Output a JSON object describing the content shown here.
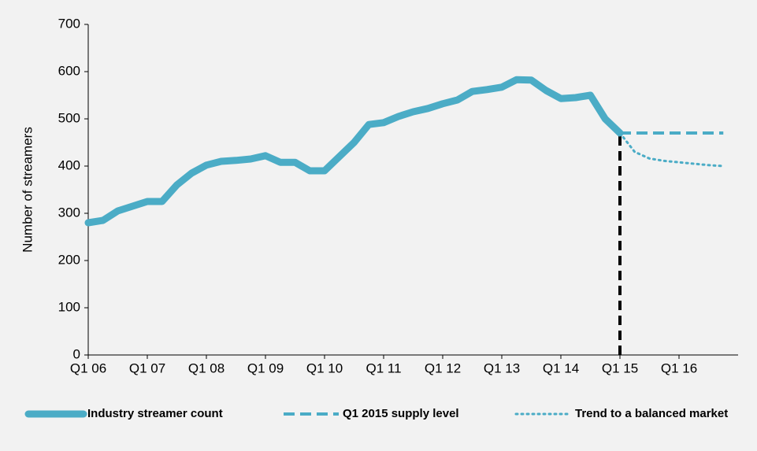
{
  "chart_data": {
    "type": "line",
    "y_label": "Number of streamers",
    "categories": [
      "Q1 06",
      null,
      null,
      null,
      "Q1 07",
      null,
      null,
      null,
      "Q1 08",
      null,
      null,
      null,
      "Q1 09",
      null,
      null,
      null,
      "Q1 10",
      null,
      null,
      null,
      "Q1 11",
      null,
      null,
      null,
      "Q1 12",
      null,
      null,
      null,
      "Q1 13",
      null,
      null,
      null,
      "Q1 14",
      null,
      null,
      null,
      "Q1 15",
      null,
      null,
      null,
      "Q1 16",
      null,
      null,
      null
    ],
    "series": [
      {
        "name": "Industry streamer count",
        "color": "#4bacc6",
        "style": "solid",
        "values": [
          280,
          285,
          305,
          315,
          325,
          325,
          360,
          385,
          402,
          410,
          412,
          415,
          422,
          408,
          408,
          390,
          390,
          420,
          450,
          488,
          492,
          505,
          515,
          522,
          532,
          540,
          558,
          562,
          567,
          583,
          582,
          560,
          543,
          545,
          550,
          500,
          470,
          null,
          null,
          null,
          null,
          null,
          null,
          null
        ]
      },
      {
        "name": "Q1 2015 supply level",
        "color": "#4bacc6",
        "style": "dashed",
        "values": [
          null,
          null,
          null,
          null,
          null,
          null,
          null,
          null,
          null,
          null,
          null,
          null,
          null,
          null,
          null,
          null,
          null,
          null,
          null,
          null,
          null,
          null,
          null,
          null,
          null,
          null,
          null,
          null,
          null,
          null,
          null,
          null,
          null,
          null,
          null,
          null,
          470,
          470,
          470,
          470,
          470,
          470,
          470,
          470
        ]
      },
      {
        "name": "Trend to a balanced market",
        "color": "#4bacc6",
        "style": "dotted",
        "values": [
          null,
          null,
          null,
          null,
          null,
          null,
          null,
          null,
          null,
          null,
          null,
          null,
          null,
          null,
          null,
          null,
          null,
          null,
          null,
          null,
          null,
          null,
          null,
          null,
          null,
          null,
          null,
          null,
          null,
          null,
          null,
          null,
          null,
          null,
          null,
          null,
          470,
          430,
          416,
          411,
          408,
          405,
          402,
          400
        ]
      }
    ],
    "ylim": [
      0,
      700
    ],
    "yticks": [
      0,
      100,
      200,
      300,
      400,
      500,
      600,
      700
    ],
    "legend": "bottom"
  }
}
